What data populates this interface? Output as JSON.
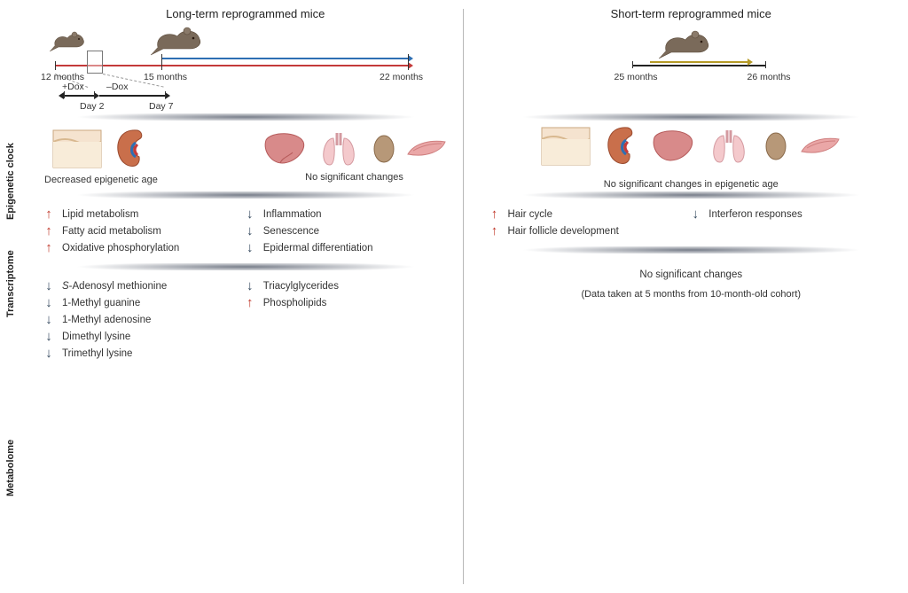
{
  "colors": {
    "up": "#c0392b",
    "down": "#34495e",
    "blue": "#2e6fb3",
    "red": "#c43a3a",
    "olive": "#b59a27",
    "black": "#222222"
  },
  "left": {
    "title": "Long-term reprogrammed mice",
    "timeline": {
      "m12": "12 months",
      "m15": "15 months",
      "m22": "22 months",
      "plusDox": "+Dox",
      "minusDox": "–Dox",
      "day2": "Day 2",
      "day7": "Day 7"
    },
    "sections": {
      "epigenetic": "Epigenetic clock",
      "transcriptome": "Transcriptome",
      "metabolome": "Metabolome"
    },
    "epi": {
      "left_label": "Decreased epigenetic age",
      "right_label": "No significant changes"
    },
    "transcriptome_up": [
      "Lipid metabolism",
      "Fatty acid metabolism",
      "Oxidative phosphorylation"
    ],
    "transcriptome_down": [
      "Inflammation",
      "Senescence",
      "Epidermal differentiation"
    ],
    "metabolome_left": [
      {
        "dir": "down",
        "label": "S-Adenosyl methionine",
        "italicFirst": true
      },
      {
        "dir": "down",
        "label": "1-Methyl guanine"
      },
      {
        "dir": "down",
        "label": "1-Methyl adenosine"
      },
      {
        "dir": "down",
        "label": "Dimethyl lysine"
      },
      {
        "dir": "down",
        "label": "Trimethyl lysine"
      }
    ],
    "metabolome_right": [
      {
        "dir": "down",
        "label": "Triacylglycerides"
      },
      {
        "dir": "up",
        "label": "Phospholipids"
      }
    ]
  },
  "right": {
    "title": "Short-term reprogrammed mice",
    "timeline": {
      "m25": "25 months",
      "m26": "26 months"
    },
    "epi_label": "No significant changes in epigenetic age",
    "transcriptome_up": [
      "Hair cycle",
      "Hair follicle development"
    ],
    "transcriptome_down": [
      "Interferon responses"
    ],
    "metabolome_note1": "No significant changes",
    "metabolome_note2": "(Data taken at 5 months from 10-month-old cohort)"
  }
}
